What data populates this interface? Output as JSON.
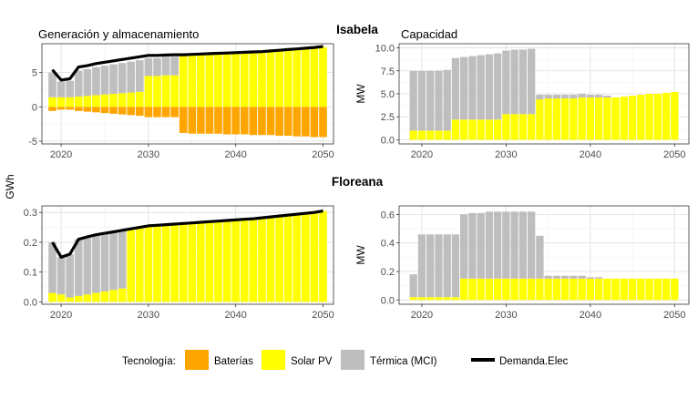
{
  "figure": {
    "strip_top": "Isabela",
    "strip_bottom": "Floreana",
    "shared_ylabel": "GWh"
  },
  "legend": {
    "title": "Tecnología:",
    "items": [
      {
        "key": "bat",
        "label": "Baterías",
        "color": "#FFA500"
      },
      {
        "key": "pv",
        "label": "Solar PV",
        "color": "#FFFF00"
      },
      {
        "key": "ter",
        "label": "Térmica (MCI)",
        "color": "#BEBEBE"
      },
      {
        "key": "dem",
        "label": "Demanda.Elec",
        "color": "#000000"
      }
    ]
  },
  "chart_data": [
    {
      "id": "isa_gen",
      "type": "bar",
      "title": "Generación y almacenamiento",
      "xlabel": "",
      "ylabel": "",
      "xlim": [
        2017.8,
        2051.2
      ],
      "ylim": [
        -5.4,
        9.2
      ],
      "xticks": [
        2020,
        2030,
        2040,
        2050
      ],
      "yticks": [
        -5,
        0,
        5
      ],
      "years": [
        2019,
        2020,
        2021,
        2022,
        2023,
        2024,
        2025,
        2026,
        2027,
        2028,
        2029,
        2030,
        2031,
        2032,
        2033,
        2034,
        2035,
        2036,
        2037,
        2038,
        2039,
        2040,
        2041,
        2042,
        2043,
        2044,
        2045,
        2046,
        2047,
        2048,
        2049,
        2050
      ],
      "series": [
        {
          "name": "Baterías",
          "key": "bat",
          "values": [
            -0.6,
            -0.4,
            -0.4,
            -0.6,
            -0.7,
            -0.8,
            -0.9,
            -1.0,
            -1.1,
            -1.2,
            -1.3,
            -1.5,
            -1.5,
            -1.5,
            -1.5,
            -3.8,
            -3.9,
            -3.9,
            -3.9,
            -3.9,
            -4.0,
            -4.0,
            -4.0,
            -4.1,
            -4.1,
            -4.1,
            -4.2,
            -4.2,
            -4.3,
            -4.3,
            -4.4,
            -4.4
          ]
        },
        {
          "name": "Solar PV",
          "key": "pv",
          "values": [
            1.4,
            1.4,
            1.4,
            1.5,
            1.6,
            1.7,
            1.8,
            1.9,
            2.0,
            2.1,
            2.2,
            4.5,
            4.5,
            4.6,
            4.6,
            7.5,
            7.6,
            7.6,
            7.7,
            7.7,
            7.8,
            7.8,
            7.9,
            7.9,
            8.0,
            8.1,
            8.2,
            8.3,
            8.4,
            8.5,
            8.6,
            8.7
          ]
        },
        {
          "name": "Térmica (MCI)",
          "key": "ter",
          "values": [
            3.6,
            2.3,
            2.4,
            3.8,
            3.9,
            4.1,
            4.2,
            4.3,
            4.4,
            4.5,
            4.6,
            2.6,
            2.6,
            2.7,
            2.7,
            0,
            0,
            0,
            0,
            0,
            0,
            0,
            0,
            0,
            0,
            0,
            0,
            0,
            0,
            0,
            0,
            0
          ]
        },
        {
          "name": "Demanda.Elec",
          "key": "dem",
          "type": "line",
          "values": [
            5.4,
            3.9,
            4.1,
            5.8,
            6.0,
            6.3,
            6.5,
            6.7,
            6.9,
            7.1,
            7.3,
            7.5,
            7.5,
            7.55,
            7.6,
            7.6,
            7.65,
            7.7,
            7.75,
            7.8,
            7.85,
            7.9,
            7.95,
            8.0,
            8.05,
            8.15,
            8.25,
            8.35,
            8.45,
            8.55,
            8.65,
            8.8
          ]
        }
      ]
    },
    {
      "id": "isa_cap",
      "type": "bar",
      "title": "Capacidad",
      "xlabel": "",
      "ylabel": "MW",
      "xlim": [
        2017.3,
        2051.7
      ],
      "ylim": [
        -0.45,
        10.45
      ],
      "xticks": [
        2020,
        2030,
        2040,
        2050
      ],
      "yticks": [
        0.0,
        2.5,
        5.0,
        7.5,
        10.0
      ],
      "tick_decimals": 1,
      "years": [
        2019,
        2020,
        2021,
        2022,
        2023,
        2024,
        2025,
        2026,
        2027,
        2028,
        2029,
        2030,
        2031,
        2032,
        2033,
        2034,
        2035,
        2036,
        2037,
        2038,
        2039,
        2040,
        2041,
        2042,
        2043,
        2044,
        2045,
        2046,
        2047,
        2048,
        2049,
        2050
      ],
      "series": [
        {
          "name": "Solar PV",
          "key": "pv",
          "values": [
            1.0,
            1.0,
            1.0,
            1.0,
            1.0,
            2.2,
            2.2,
            2.2,
            2.2,
            2.2,
            2.2,
            2.8,
            2.8,
            2.8,
            2.8,
            4.4,
            4.5,
            4.5,
            4.5,
            4.5,
            4.6,
            4.6,
            4.6,
            4.6,
            4.6,
            4.7,
            4.8,
            4.9,
            5.0,
            5.0,
            5.1,
            5.2
          ]
        },
        {
          "name": "Térmica (MCI)",
          "key": "ter",
          "values": [
            6.5,
            6.5,
            6.5,
            6.5,
            6.6,
            6.7,
            6.8,
            6.9,
            7.0,
            7.1,
            7.2,
            6.9,
            7.0,
            7.0,
            7.1,
            0.5,
            0.4,
            0.4,
            0.4,
            0.4,
            0.4,
            0.3,
            0.3,
            0.2,
            0,
            0,
            0,
            0,
            0,
            0,
            0,
            0
          ]
        }
      ]
    },
    {
      "id": "flo_gen",
      "type": "bar",
      "title": "",
      "xlabel": "",
      "ylabel": "",
      "xlim": [
        2017.8,
        2051.2
      ],
      "ylim": [
        -0.008,
        0.322
      ],
      "xticks": [
        2020,
        2030,
        2040,
        2050
      ],
      "yticks": [
        0.0,
        0.1,
        0.2,
        0.3
      ],
      "tick_decimals": 1,
      "years": [
        2019,
        2020,
        2021,
        2022,
        2023,
        2024,
        2025,
        2026,
        2027,
        2028,
        2029,
        2030,
        2031,
        2032,
        2033,
        2034,
        2035,
        2036,
        2037,
        2038,
        2039,
        2040,
        2041,
        2042,
        2043,
        2044,
        2045,
        2046,
        2047,
        2048,
        2049,
        2050
      ],
      "series": [
        {
          "name": "Solar PV",
          "key": "pv",
          "values": [
            0.03,
            0.025,
            0.015,
            0.02,
            0.025,
            0.03,
            0.035,
            0.04,
            0.045,
            0.245,
            0.25,
            0.255,
            0.257,
            0.259,
            0.261,
            0.263,
            0.265,
            0.267,
            0.269,
            0.271,
            0.273,
            0.275,
            0.277,
            0.279,
            0.282,
            0.285,
            0.288,
            0.291,
            0.294,
            0.297,
            0.3,
            0.305
          ]
        },
        {
          "name": "Térmica (MCI)",
          "key": "ter",
          "values": [
            0.17,
            0.125,
            0.145,
            0.19,
            0.195,
            0.195,
            0.195,
            0.195,
            0.195,
            0,
            0,
            0,
            0,
            0,
            0,
            0,
            0,
            0,
            0,
            0,
            0,
            0,
            0,
            0,
            0,
            0,
            0,
            0,
            0,
            0,
            0,
            0
          ]
        },
        {
          "name": "Demanda.Elec",
          "key": "dem",
          "type": "line",
          "values": [
            0.2,
            0.15,
            0.16,
            0.21,
            0.218,
            0.225,
            0.23,
            0.235,
            0.24,
            0.245,
            0.25,
            0.255,
            0.257,
            0.259,
            0.261,
            0.263,
            0.265,
            0.267,
            0.269,
            0.271,
            0.273,
            0.275,
            0.277,
            0.279,
            0.282,
            0.285,
            0.288,
            0.291,
            0.294,
            0.297,
            0.3,
            0.305
          ]
        }
      ]
    },
    {
      "id": "flo_cap",
      "type": "bar",
      "title": "",
      "xlabel": "",
      "ylabel": "MW",
      "xlim": [
        2017.3,
        2051.7
      ],
      "ylim": [
        -0.03,
        0.66
      ],
      "xticks": [
        2020,
        2030,
        2040,
        2050
      ],
      "yticks": [
        0.0,
        0.2,
        0.4,
        0.6
      ],
      "tick_decimals": 1,
      "years": [
        2019,
        2020,
        2021,
        2022,
        2023,
        2024,
        2025,
        2026,
        2027,
        2028,
        2029,
        2030,
        2031,
        2032,
        2033,
        2034,
        2035,
        2036,
        2037,
        2038,
        2039,
        2040,
        2041,
        2042,
        2043,
        2044,
        2045,
        2046,
        2047,
        2048,
        2049,
        2050
      ],
      "series": [
        {
          "name": "Solar PV",
          "key": "pv",
          "values": [
            0.02,
            0.02,
            0.02,
            0.02,
            0.02,
            0.02,
            0.15,
            0.15,
            0.15,
            0.15,
            0.15,
            0.15,
            0.15,
            0.15,
            0.15,
            0.15,
            0.15,
            0.15,
            0.15,
            0.15,
            0.15,
            0.15,
            0.15,
            0.15,
            0.15,
            0.15,
            0.15,
            0.15,
            0.15,
            0.15,
            0.15,
            0.15
          ]
        },
        {
          "name": "Térmica (MCI)",
          "key": "ter",
          "values": [
            0.16,
            0.44,
            0.44,
            0.44,
            0.44,
            0.44,
            0.45,
            0.46,
            0.46,
            0.47,
            0.47,
            0.47,
            0.47,
            0.47,
            0.47,
            0.3,
            0.02,
            0.02,
            0.02,
            0.02,
            0.02,
            0.01,
            0.01,
            0,
            0,
            0,
            0,
            0,
            0,
            0,
            0,
            0
          ]
        }
      ]
    }
  ]
}
